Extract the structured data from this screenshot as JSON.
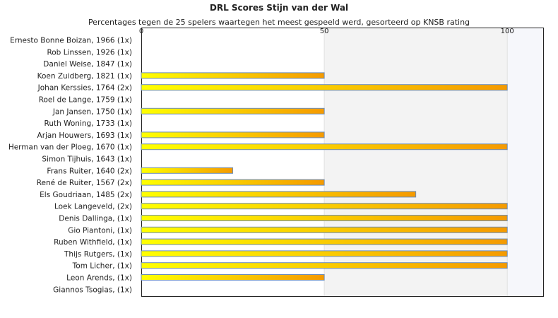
{
  "chart_data": {
    "type": "bar",
    "orientation": "horizontal",
    "title": "DRL Scores Stijn van der Wal",
    "subtitle": "Percentages tegen de 25 spelers waartegen het meest gespeeld werd, gesorteerd op KNSB rating",
    "xlim": [
      0,
      110
    ],
    "xticks": [
      0,
      50,
      100
    ],
    "grid": true,
    "categories": [
      "Ernesto Bonne Boizan, 1966 (1x)",
      "Rob Linssen, 1926 (1x)",
      "Daniel Weise, 1847 (1x)",
      "Koen Zuidberg, 1821 (1x)",
      "Johan Kerssies, 1764 (2x)",
      "Roel de Lange, 1759 (1x)",
      "Jan Jansen, 1750 (1x)",
      "Ruth Woning, 1733 (1x)",
      "Arjan Houwers, 1693 (1x)",
      "Herman van der Ploeg, 1670 (1x)",
      "Simon Tijhuis, 1643 (1x)",
      "Frans Ruiter, 1640 (2x)",
      "René de Ruiter, 1567 (2x)",
      "Els Goudriaan, 1485 (2x)",
      "Loek Langeveld,  (2x)",
      "Denis Dallinga,  (1x)",
      "Gio Piantoni,  (1x)",
      "Ruben Withfield,  (1x)",
      "Thijs Rutgers,  (1x)",
      "Tom Licher,  (1x)",
      "Leon Arends,  (1x)",
      "Giannos Tsogias,  (1x)"
    ],
    "values": [
      0,
      0,
      0,
      50,
      100,
      0,
      50,
      0,
      50,
      100,
      0,
      25,
      50,
      75,
      100,
      100,
      100,
      100,
      100,
      100,
      50,
      0
    ],
    "colors": {
      "bar_start": "#ffff00",
      "bar_end": "#f59a00",
      "bar_border": "#6a8cba",
      "band_light": "#f3f3f3",
      "band_lighter": "#f6f7fb"
    }
  }
}
